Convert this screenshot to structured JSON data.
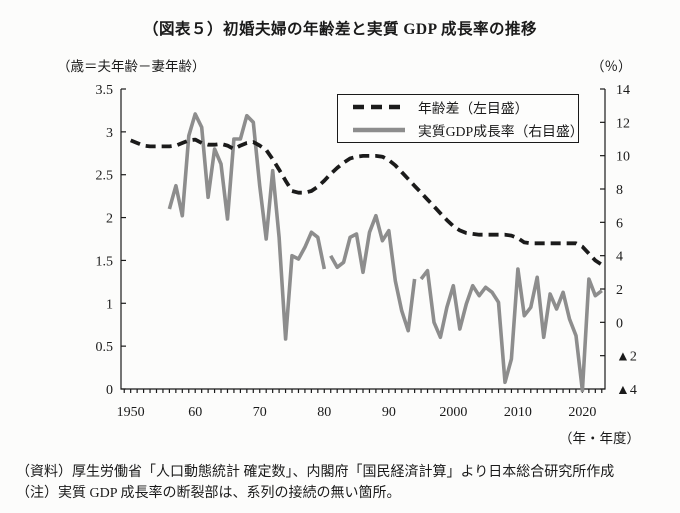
{
  "chart_data": {
    "type": "line",
    "title": "（図表５）初婚夫婦の年齢差と実質 GDP 成長率の推移",
    "source": "（資料）厚生労働省「人口動態統計 確定数」、内閣府「国民経済計算」より日本総合研究所作成",
    "note": "（注）実質 GDP 成長率の断裂部は、系列の接続の無い箇所。",
    "left_axis": {
      "unit": "（歳＝夫年齢－妻年齢）",
      "range": [
        0,
        3.5
      ],
      "ticks": [
        [
          3.5,
          "3.5"
        ],
        [
          3,
          "3"
        ],
        [
          2.5,
          "2.5"
        ],
        [
          2,
          "2"
        ],
        [
          1.5,
          "1.5"
        ],
        [
          1,
          "1"
        ],
        [
          0.5,
          "0.5"
        ],
        [
          0,
          "0"
        ]
      ]
    },
    "right_axis": {
      "unit": "（％）",
      "range": [
        -4,
        14
      ],
      "ticks": [
        [
          14,
          "14"
        ],
        [
          12,
          "12"
        ],
        [
          10,
          "10"
        ],
        [
          8,
          "8"
        ],
        [
          6,
          "6"
        ],
        [
          4,
          "4"
        ],
        [
          2,
          "2"
        ],
        [
          0,
          "0"
        ],
        [
          -2,
          "▲2"
        ],
        [
          -4,
          "▲4"
        ]
      ]
    },
    "x_axis": {
      "unit": "（年・年度）",
      "range": [
        1948.5,
        2023.5
      ],
      "year_ticks": [
        1949,
        2023
      ],
      "labels": [
        [
          1950,
          "1950"
        ],
        [
          1960,
          "60"
        ],
        [
          1970,
          "70"
        ],
        [
          1980,
          "80"
        ],
        [
          1990,
          "90"
        ],
        [
          2000,
          "2000"
        ],
        [
          2010,
          "2010"
        ],
        [
          2020,
          "2020"
        ]
      ]
    },
    "series": [
      {
        "name": "年齢差（左目盛）",
        "axis": "left",
        "style": "dashed",
        "color": "#1b1b1b",
        "points": [
          [
            1950,
            2.9
          ],
          [
            1951,
            2.87
          ],
          [
            1952,
            2.84
          ],
          [
            1953,
            2.83
          ],
          [
            1954,
            2.83
          ],
          [
            1955,
            2.83
          ],
          [
            1956,
            2.83
          ],
          [
            1957,
            2.84
          ],
          [
            1958,
            2.87
          ],
          [
            1959,
            2.9
          ],
          [
            1960,
            2.91
          ],
          [
            1961,
            2.87
          ],
          [
            1962,
            2.85
          ],
          [
            1963,
            2.85
          ],
          [
            1964,
            2.86
          ],
          [
            1965,
            2.84
          ],
          [
            1966,
            2.8
          ],
          [
            1967,
            2.84
          ],
          [
            1968,
            2.87
          ],
          [
            1969,
            2.88
          ],
          [
            1970,
            2.84
          ],
          [
            1971,
            2.79
          ],
          [
            1972,
            2.68
          ],
          [
            1973,
            2.56
          ],
          [
            1974,
            2.43
          ],
          [
            1975,
            2.31
          ],
          [
            1976,
            2.29
          ],
          [
            1977,
            2.29
          ],
          [
            1978,
            2.31
          ],
          [
            1979,
            2.36
          ],
          [
            1980,
            2.43
          ],
          [
            1981,
            2.51
          ],
          [
            1982,
            2.58
          ],
          [
            1983,
            2.64
          ],
          [
            1984,
            2.69
          ],
          [
            1985,
            2.71
          ],
          [
            1986,
            2.72
          ],
          [
            1987,
            2.72
          ],
          [
            1988,
            2.72
          ],
          [
            1989,
            2.71
          ],
          [
            1990,
            2.67
          ],
          [
            1991,
            2.61
          ],
          [
            1992,
            2.53
          ],
          [
            1993,
            2.45
          ],
          [
            1994,
            2.37
          ],
          [
            1995,
            2.29
          ],
          [
            1996,
            2.21
          ],
          [
            1997,
            2.13
          ],
          [
            1998,
            2.05
          ],
          [
            1999,
            1.97
          ],
          [
            2000,
            1.9
          ],
          [
            2001,
            1.85
          ],
          [
            2002,
            1.82
          ],
          [
            2003,
            1.81
          ],
          [
            2004,
            1.8
          ],
          [
            2005,
            1.8
          ],
          [
            2006,
            1.8
          ],
          [
            2007,
            1.8
          ],
          [
            2008,
            1.8
          ],
          [
            2009,
            1.79
          ],
          [
            2010,
            1.76
          ],
          [
            2011,
            1.71
          ],
          [
            2012,
            1.7
          ],
          [
            2013,
            1.7
          ],
          [
            2014,
            1.7
          ],
          [
            2015,
            1.7
          ],
          [
            2016,
            1.7
          ],
          [
            2017,
            1.7
          ],
          [
            2018,
            1.7
          ],
          [
            2019,
            1.7
          ],
          [
            2020,
            1.66
          ],
          [
            2021,
            1.58
          ],
          [
            2022,
            1.5
          ],
          [
            2023,
            1.45
          ]
        ]
      },
      {
        "name": "実質GDP成長率（右目盛）",
        "axis": "right",
        "style": "solid",
        "color": "#8d8d8d",
        "segments": [
          [
            [
              1956,
              6.8
            ],
            [
              1957,
              8.2
            ],
            [
              1958,
              6.4
            ],
            [
              1959,
              11.2
            ],
            [
              1960,
              12.5
            ],
            [
              1961,
              11.7
            ],
            [
              1962,
              7.5
            ],
            [
              1963,
              10.4
            ],
            [
              1964,
              9.5
            ],
            [
              1965,
              6.2
            ],
            [
              1966,
              11.0
            ],
            [
              1967,
              11.0
            ],
            [
              1968,
              12.4
            ],
            [
              1969,
              12.0
            ],
            [
              1970,
              8.2
            ],
            [
              1971,
              5.0
            ],
            [
              1972,
              9.1
            ],
            [
              1973,
              5.1
            ],
            [
              1974,
              -1.0
            ],
            [
              1975,
              4.0
            ],
            [
              1976,
              3.8
            ],
            [
              1977,
              4.5
            ],
            [
              1978,
              5.4
            ],
            [
              1979,
              5.1
            ],
            [
              1980,
              3.2
            ]
          ],
          [
            [
              1981,
              4.0
            ],
            [
              1982,
              3.3
            ],
            [
              1983,
              3.6
            ],
            [
              1984,
              5.1
            ],
            [
              1985,
              5.3
            ],
            [
              1986,
              3.0
            ],
            [
              1987,
              5.4
            ],
            [
              1988,
              6.4
            ],
            [
              1989,
              4.9
            ],
            [
              1990,
              5.5
            ],
            [
              1991,
              2.5
            ],
            [
              1992,
              0.7
            ],
            [
              1993,
              -0.5
            ],
            [
              1994,
              2.6
            ]
          ],
          [
            [
              1995,
              2.6
            ],
            [
              1996,
              3.1
            ],
            [
              1997,
              0.0
            ],
            [
              1998,
              -0.9
            ],
            [
              1999,
              0.9
            ],
            [
              2000,
              2.2
            ],
            [
              2001,
              -0.4
            ],
            [
              2002,
              1.1
            ],
            [
              2003,
              2.2
            ],
            [
              2004,
              1.6
            ],
            [
              2005,
              2.1
            ],
            [
              2006,
              1.8
            ],
            [
              2007,
              1.2
            ],
            [
              2008,
              -3.6
            ],
            [
              2009,
              -2.2
            ],
            [
              2010,
              3.2
            ],
            [
              2011,
              0.4
            ],
            [
              2012,
              0.9
            ],
            [
              2013,
              2.7
            ],
            [
              2014,
              -0.9
            ],
            [
              2015,
              1.7
            ],
            [
              2016,
              0.8
            ],
            [
              2017,
              1.8
            ],
            [
              2018,
              0.2
            ],
            [
              2019,
              -0.8
            ],
            [
              2020,
              -4.1
            ],
            [
              2021,
              2.6
            ],
            [
              2022,
              1.6
            ],
            [
              2023,
              1.9
            ]
          ]
        ]
      }
    ]
  }
}
